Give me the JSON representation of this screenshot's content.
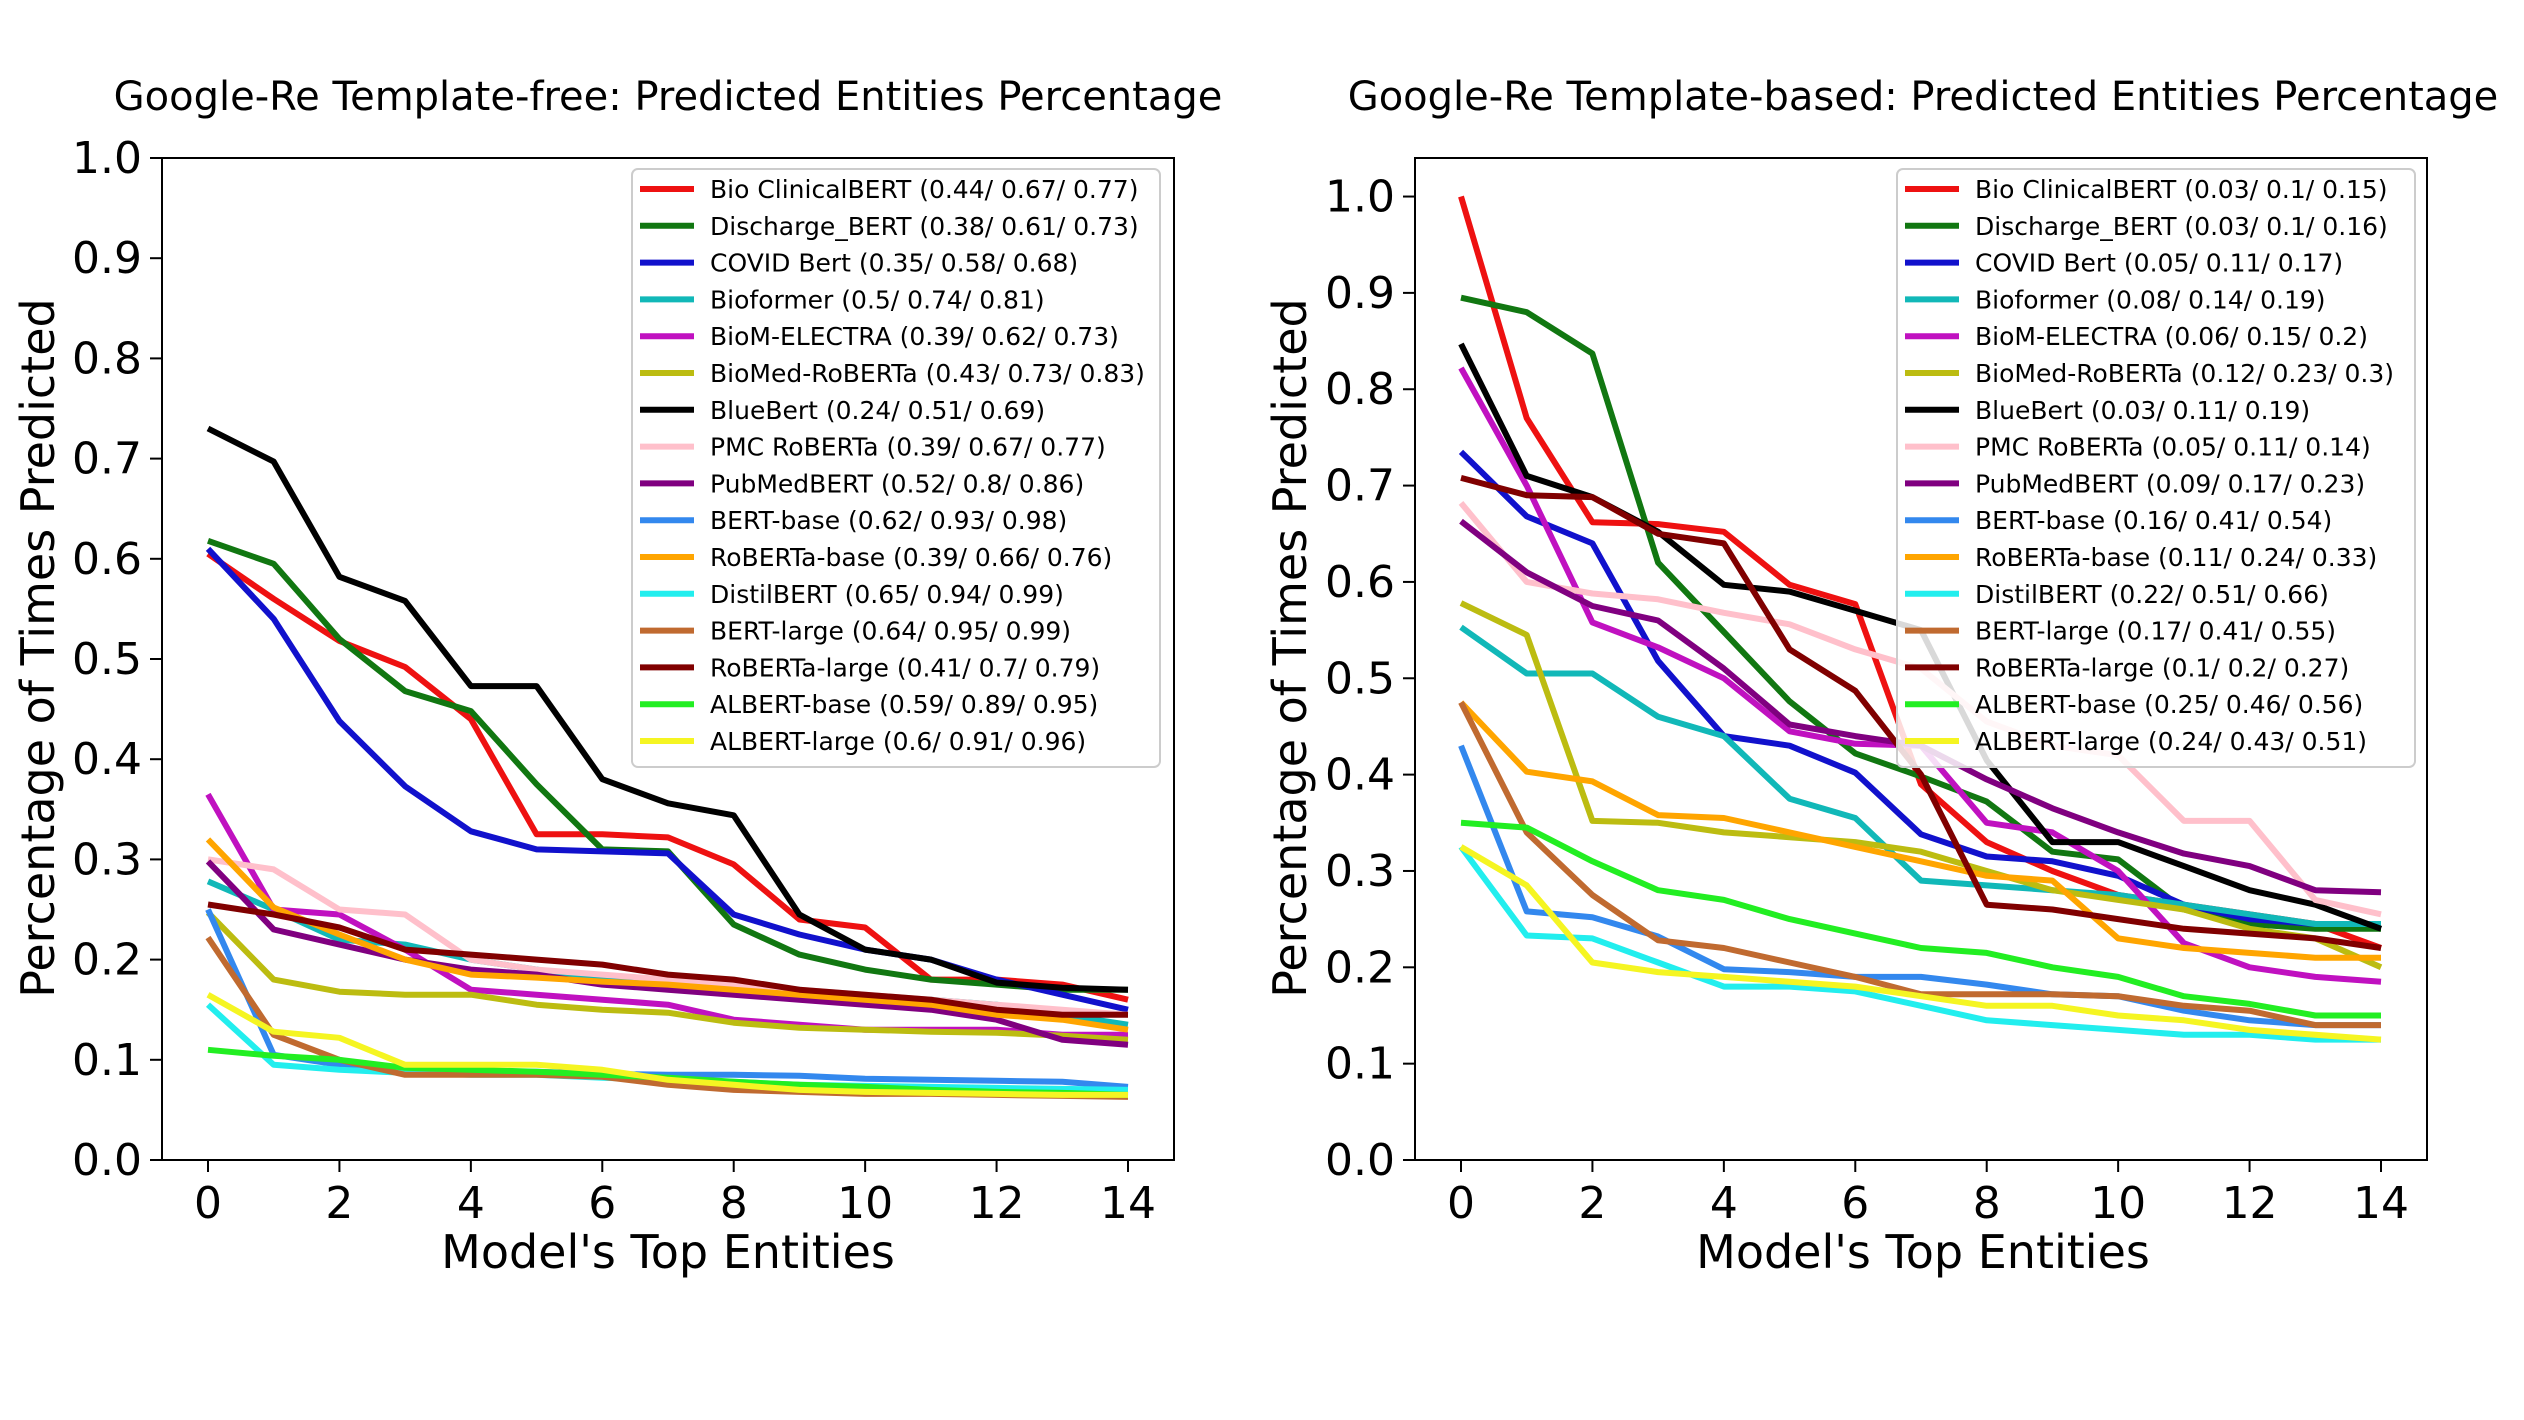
{
  "colors": {
    "red": "#ee1111",
    "green": "#117711",
    "blue": "#1111cc",
    "teal": "#11b8b8",
    "magenta": "#c011c0",
    "olive": "#bcbc11",
    "black": "#000000",
    "pink": "#ffc0cb",
    "purple": "#800080",
    "skyblue": "#3388ee",
    "orange": "#ffa500",
    "cyan": "#22eeee",
    "brown": "#c06a30",
    "darkred": "#800000",
    "lime": "#22ee22",
    "yellow": "#f5f522"
  },
  "chart_data": [
    {
      "type": "line",
      "title": "Google-Re Template-free: Predicted Entities Percentage",
      "xlabel": "Model's Top Entities",
      "ylabel": "Percentage of Times Predicted",
      "xlim": [
        -0.7,
        14.7
      ],
      "ylim": [
        0.0,
        1.0
      ],
      "xticks": [
        0,
        2,
        4,
        6,
        8,
        10,
        12,
        14
      ],
      "yticks": [
        0.0,
        0.1,
        0.2,
        0.3,
        0.4,
        0.5,
        0.6,
        0.7,
        0.8,
        0.9,
        1.0
      ],
      "ytick_labels": [
        "0.0",
        "0.1",
        "0.2",
        "0.3",
        "0.4",
        "0.5",
        "0.6",
        "0.7",
        "0.8",
        "0.9",
        "1.0"
      ],
      "legend_position": "top-right",
      "x": [
        0,
        1,
        2,
        3,
        4,
        5,
        6,
        7,
        8,
        9,
        10,
        11,
        12,
        13,
        14
      ],
      "series": [
        {
          "name": "Bio ClinicalBERT (0.44/ 0.67/ 0.77)",
          "color": "#ee1111",
          "values": [
            0.605,
            0.56,
            0.518,
            0.492,
            0.44,
            0.325,
            0.325,
            0.322,
            0.295,
            0.24,
            0.232,
            0.18,
            0.18,
            0.175,
            0.16
          ]
        },
        {
          "name": "Discharge_BERT (0.38/ 0.61/ 0.73)",
          "color": "#117711",
          "values": [
            0.618,
            0.595,
            0.52,
            0.468,
            0.448,
            0.375,
            0.31,
            0.308,
            0.235,
            0.205,
            0.19,
            0.18,
            0.175,
            0.17,
            0.17
          ]
        },
        {
          "name": "COVID Bert (0.35/ 0.58/ 0.68)",
          "color": "#1111cc",
          "values": [
            0.61,
            0.54,
            0.438,
            0.373,
            0.328,
            0.31,
            0.308,
            0.306,
            0.245,
            0.225,
            0.21,
            0.2,
            0.18,
            0.165,
            0.15
          ]
        },
        {
          "name": "Bioformer (0.5/ 0.74/ 0.81)",
          "color": "#11b8b8",
          "values": [
            0.278,
            0.25,
            0.22,
            0.215,
            0.2,
            0.19,
            0.18,
            0.18,
            0.175,
            0.17,
            0.16,
            0.16,
            0.155,
            0.145,
            0.135
          ]
        },
        {
          "name": "BioM-ELECTRA (0.39/ 0.62/ 0.73)",
          "color": "#c011c0",
          "values": [
            0.365,
            0.25,
            0.245,
            0.21,
            0.17,
            0.165,
            0.16,
            0.155,
            0.14,
            0.135,
            0.13,
            0.13,
            0.13,
            0.125,
            0.125
          ]
        },
        {
          "name": "BioMed-RoBERTa  (0.43/ 0.73/ 0.83)",
          "color": "#bcbc11",
          "values": [
            0.247,
            0.18,
            0.168,
            0.165,
            0.165,
            0.155,
            0.15,
            0.147,
            0.137,
            0.132,
            0.13,
            0.128,
            0.127,
            0.124,
            0.12
          ]
        },
        {
          "name": "BlueBert (0.24/ 0.51/ 0.69)",
          "color": "#000000",
          "values": [
            0.73,
            0.697,
            0.582,
            0.558,
            0.473,
            0.473,
            0.38,
            0.356,
            0.344,
            0.245,
            0.21,
            0.2,
            0.177,
            0.172,
            0.17
          ]
        },
        {
          "name": "PMC RoBERTa (0.39/ 0.67/ 0.77)",
          "color": "#ffc0cb",
          "values": [
            0.3,
            0.29,
            0.25,
            0.245,
            0.2,
            0.19,
            0.185,
            0.18,
            0.175,
            0.17,
            0.165,
            0.16,
            0.155,
            0.15,
            0.145
          ]
        },
        {
          "name": "PubMedBERT (0.52/ 0.8/ 0.86)",
          "color": "#800080",
          "values": [
            0.298,
            0.23,
            0.215,
            0.2,
            0.19,
            0.185,
            0.175,
            0.17,
            0.165,
            0.16,
            0.155,
            0.15,
            0.14,
            0.12,
            0.115
          ]
        },
        {
          "name": "BERT-base  (0.62/ 0.93/ 0.98)",
          "color": "#3388ee",
          "values": [
            0.25,
            0.105,
            0.095,
            0.088,
            0.088,
            0.088,
            0.086,
            0.085,
            0.085,
            0.084,
            0.081,
            0.08,
            0.079,
            0.078,
            0.073
          ]
        },
        {
          "name": "RoBERTa-base (0.39/ 0.66/ 0.76)",
          "color": "#ffa500",
          "values": [
            0.32,
            0.252,
            0.225,
            0.2,
            0.185,
            0.182,
            0.178,
            0.175,
            0.17,
            0.165,
            0.16,
            0.155,
            0.145,
            0.14,
            0.13
          ]
        },
        {
          "name": "DistilBERT (0.65/ 0.94/ 0.99)",
          "color": "#22eeee",
          "values": [
            0.155,
            0.095,
            0.09,
            0.087,
            0.085,
            0.085,
            0.082,
            0.08,
            0.078,
            0.075,
            0.074,
            0.073,
            0.072,
            0.071,
            0.07
          ]
        },
        {
          "name": "BERT-large (0.64/ 0.95/ 0.99)",
          "color": "#c06a30",
          "values": [
            0.222,
            0.125,
            0.1,
            0.085,
            0.085,
            0.085,
            0.083,
            0.075,
            0.07,
            0.068,
            0.066,
            0.066,
            0.065,
            0.064,
            0.063
          ]
        },
        {
          "name": "RoBERTa-large (0.41/ 0.7/ 0.79)",
          "color": "#800000",
          "values": [
            0.255,
            0.245,
            0.232,
            0.21,
            0.205,
            0.2,
            0.195,
            0.185,
            0.18,
            0.17,
            0.165,
            0.16,
            0.15,
            0.145,
            0.145
          ]
        },
        {
          "name": "ALBERT-base (0.59/ 0.89/ 0.95)",
          "color": "#22ee22",
          "values": [
            0.11,
            0.104,
            0.1,
            0.092,
            0.09,
            0.088,
            0.085,
            0.082,
            0.078,
            0.075,
            0.073,
            0.07,
            0.068,
            0.067,
            0.065
          ]
        },
        {
          "name": "ALBERT-large (0.6/ 0.91/ 0.96)",
          "color": "#f5f522",
          "values": [
            0.165,
            0.128,
            0.122,
            0.095,
            0.095,
            0.095,
            0.09,
            0.08,
            0.075,
            0.07,
            0.068,
            0.067,
            0.066,
            0.065,
            0.065
          ]
        }
      ]
    },
    {
      "type": "line",
      "title": "Google-Re Template-based: Predicted Entities Percentage",
      "xlabel": "Model's Top Entities",
      "ylabel": "Percentage of Times Predicted",
      "xlim": [
        -0.7,
        14.7
      ],
      "ylim": [
        0.0,
        1.04
      ],
      "xticks": [
        0,
        2,
        4,
        6,
        8,
        10,
        12,
        14
      ],
      "yticks": [
        0.0,
        0.1,
        0.2,
        0.3,
        0.4,
        0.5,
        0.6,
        0.7,
        0.8,
        0.9,
        1.0
      ],
      "ytick_labels": [
        "0.0",
        "0.1",
        "0.2",
        "0.3",
        "0.4",
        "0.5",
        "0.6",
        "0.7",
        "0.8",
        "0.9",
        "1.0"
      ],
      "legend_position": "top-right",
      "x": [
        0,
        1,
        2,
        3,
        4,
        5,
        6,
        7,
        8,
        9,
        10,
        11,
        12,
        13,
        14
      ],
      "series": [
        {
          "name": "Bio ClinicalBERT (0.03/ 0.1/ 0.15)",
          "color": "#ee1111",
          "values": [
            1.0,
            0.77,
            0.662,
            0.66,
            0.652,
            0.597,
            0.577,
            0.39,
            0.33,
            0.3,
            0.275,
            0.265,
            0.255,
            0.245,
            0.22
          ]
        },
        {
          "name": "Discharge_BERT (0.03/ 0.1/ 0.16)",
          "color": "#117711",
          "values": [
            0.895,
            0.88,
            0.837,
            0.62,
            0.548,
            0.476,
            0.422,
            0.398,
            0.372,
            0.32,
            0.312,
            0.26,
            0.245,
            0.24,
            0.24
          ]
        },
        {
          "name": "COVID Bert (0.05/ 0.11/ 0.17)",
          "color": "#1111cc",
          "values": [
            0.735,
            0.668,
            0.64,
            0.518,
            0.44,
            0.43,
            0.402,
            0.338,
            0.315,
            0.31,
            0.295,
            0.265,
            0.25,
            0.245,
            0.245
          ]
        },
        {
          "name": "Bioformer (0.08/ 0.14/ 0.19)",
          "color": "#11b8b8",
          "values": [
            0.553,
            0.505,
            0.505,
            0.46,
            0.44,
            0.375,
            0.355,
            0.29,
            0.285,
            0.28,
            0.275,
            0.265,
            0.255,
            0.245,
            0.245
          ]
        },
        {
          "name": "BioM-ELECTRA (0.06/ 0.15/ 0.2)",
          "color": "#c011c0",
          "values": [
            0.822,
            0.7,
            0.558,
            0.532,
            0.5,
            0.445,
            0.432,
            0.43,
            0.35,
            0.34,
            0.3,
            0.225,
            0.2,
            0.19,
            0.185
          ]
        },
        {
          "name": "BioMed-RoBERTa  (0.12/ 0.23/ 0.3)",
          "color": "#bcbc11",
          "values": [
            0.578,
            0.545,
            0.352,
            0.35,
            0.34,
            0.335,
            0.33,
            0.32,
            0.3,
            0.28,
            0.27,
            0.26,
            0.24,
            0.23,
            0.2
          ]
        },
        {
          "name": "BlueBert (0.03/ 0.11/ 0.19)",
          "color": "#000000",
          "values": [
            0.847,
            0.71,
            0.688,
            0.652,
            0.597,
            0.59,
            0.57,
            0.55,
            0.415,
            0.33,
            0.33,
            0.305,
            0.28,
            0.265,
            0.24
          ]
        },
        {
          "name": "PMC RoBERTa (0.05/ 0.11/ 0.14)",
          "color": "#ffc0cb",
          "values": [
            0.682,
            0.6,
            0.588,
            0.582,
            0.568,
            0.556,
            0.53,
            0.51,
            0.455,
            0.43,
            0.42,
            0.352,
            0.352,
            0.27,
            0.255
          ]
        },
        {
          "name": "PubMedBERT (0.09/ 0.17/ 0.23)",
          "color": "#800080",
          "values": [
            0.663,
            0.61,
            0.575,
            0.56,
            0.51,
            0.452,
            0.44,
            0.43,
            0.395,
            0.365,
            0.34,
            0.318,
            0.305,
            0.28,
            0.278
          ]
        },
        {
          "name": "BERT-base  (0.16/ 0.41/ 0.54)",
          "color": "#3388ee",
          "values": [
            0.43,
            0.258,
            0.252,
            0.232,
            0.198,
            0.195,
            0.19,
            0.19,
            0.182,
            0.172,
            0.17,
            0.155,
            0.145,
            0.14,
            0.14
          ]
        },
        {
          "name": "RoBERTa-base (0.11/ 0.24/ 0.33)",
          "color": "#ffa500",
          "values": [
            0.475,
            0.403,
            0.393,
            0.358,
            0.355,
            0.34,
            0.325,
            0.31,
            0.295,
            0.29,
            0.23,
            0.22,
            0.215,
            0.21,
            0.21
          ]
        },
        {
          "name": "DistilBERT (0.22/ 0.51/ 0.66)",
          "color": "#22eeee",
          "values": [
            0.325,
            0.233,
            0.23,
            0.205,
            0.18,
            0.18,
            0.175,
            0.16,
            0.145,
            0.14,
            0.135,
            0.13,
            0.13,
            0.125,
            0.125
          ]
        },
        {
          "name": "BERT-large (0.17/ 0.41/ 0.55)",
          "color": "#c06a30",
          "values": [
            0.475,
            0.34,
            0.275,
            0.228,
            0.22,
            0.205,
            0.19,
            0.172,
            0.172,
            0.172,
            0.17,
            0.16,
            0.155,
            0.14,
            0.14
          ]
        },
        {
          "name": "RoBERTa-large (0.1/ 0.2/ 0.27)",
          "color": "#800000",
          "values": [
            0.708,
            0.69,
            0.688,
            0.65,
            0.64,
            0.53,
            0.487,
            0.4,
            0.265,
            0.26,
            0.25,
            0.24,
            0.235,
            0.23,
            0.22
          ]
        },
        {
          "name": "ALBERT-base (0.25/ 0.46/ 0.56)",
          "color": "#22ee22",
          "values": [
            0.35,
            0.345,
            0.31,
            0.28,
            0.27,
            0.25,
            0.235,
            0.22,
            0.215,
            0.2,
            0.19,
            0.17,
            0.162,
            0.15,
            0.15
          ]
        },
        {
          "name": "ALBERT-large (0.24/ 0.43/ 0.51)",
          "color": "#f5f522",
          "values": [
            0.325,
            0.285,
            0.205,
            0.195,
            0.19,
            0.185,
            0.18,
            0.17,
            0.16,
            0.16,
            0.15,
            0.145,
            0.135,
            0.13,
            0.125
          ]
        }
      ]
    }
  ]
}
